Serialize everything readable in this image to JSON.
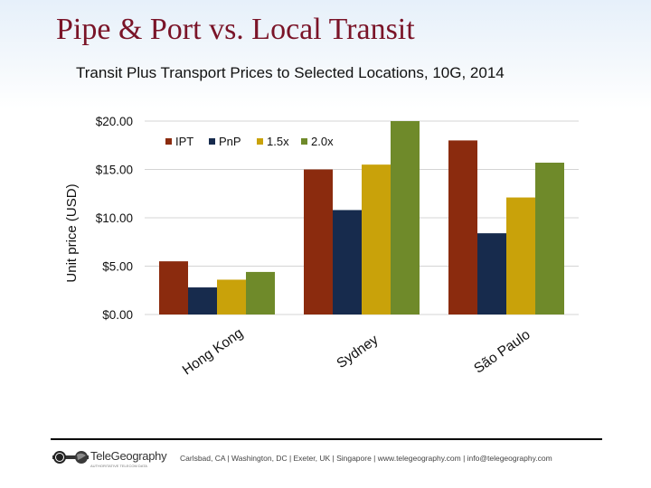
{
  "slide": {
    "title": "Pipe & Port vs. Local Transit"
  },
  "chart_data": {
    "type": "bar",
    "title": "Transit Plus Transport Prices to Selected Locations, 10G, 2014",
    "xlabel": "",
    "ylabel": "Unit price (USD)",
    "categories": [
      "Hong Kong",
      "Sydney",
      "São Paulo"
    ],
    "series": [
      {
        "name": "IPT",
        "color": "#8b2b0e",
        "values": [
          5.5,
          15.0,
          18.0
        ]
      },
      {
        "name": "PnP",
        "color": "#172b4d",
        "values": [
          2.8,
          10.8,
          8.4
        ]
      },
      {
        "name": "1.5x",
        "color": "#c9a20a",
        "values": [
          3.6,
          15.5,
          12.1
        ]
      },
      {
        "name": "2.0x",
        "color": "#6f8a2a",
        "values": [
          4.4,
          20.0,
          15.7
        ]
      }
    ],
    "ylim": [
      0,
      20
    ],
    "yticks": [
      0,
      5,
      10,
      15,
      20
    ],
    "ytick_labels": [
      "$0.00",
      "$5.00",
      "$10.00",
      "$15.00",
      "$20.00"
    ],
    "grid": true,
    "legend_position": "top-left"
  },
  "footer": {
    "logo_icon": "globe-icon",
    "logo_text": "TeleGeography",
    "logo_tagline": "AUTHORITATIVE TELECOM DATA",
    "contact": "Carlsbad, CA | Washington, DC | Exeter, UK | Singapore | www.telegeography.com | info@telegeography.com"
  }
}
